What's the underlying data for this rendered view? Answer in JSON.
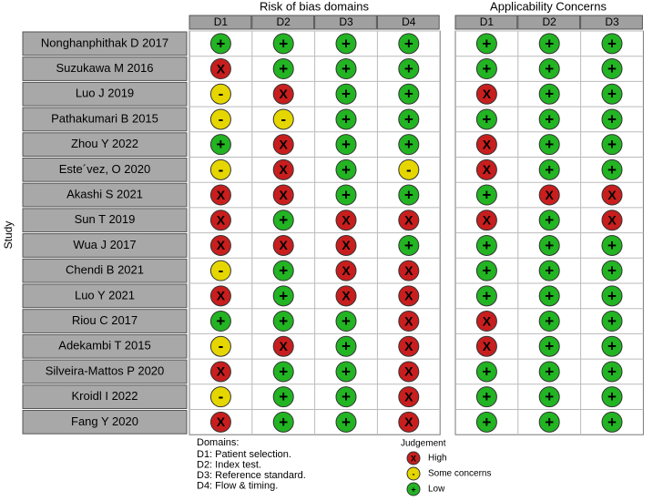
{
  "title_rob": "Risk of bias domains",
  "title_app": "Applicability Concerns",
  "axis_label": "Study",
  "rob_domains": [
    "D1",
    "D2",
    "D3",
    "D4"
  ],
  "app_domains": [
    "D1",
    "D2",
    "D3"
  ],
  "rows": [
    {
      "study": "Nonghanphithak D  2017",
      "rob": [
        "+",
        "+",
        "+",
        "+"
      ],
      "app": [
        "+",
        "+",
        "+"
      ]
    },
    {
      "study": "Suzukawa M 2016",
      "rob": [
        "X",
        "+",
        "+",
        "+"
      ],
      "app": [
        "+",
        "+",
        "+"
      ]
    },
    {
      "study": "Luo J 2019",
      "rob": [
        "-",
        "X",
        "+",
        "+"
      ],
      "app": [
        "X",
        "+",
        "+"
      ]
    },
    {
      "study": "Pathakumari  B 2015",
      "rob": [
        "-",
        "-",
        "+",
        "+"
      ],
      "app": [
        "+",
        "+",
        "+"
      ]
    },
    {
      "study": "Zhou Y 2022",
      "rob": [
        "+",
        "X",
        "+",
        "+"
      ],
      "app": [
        "X",
        "+",
        "+"
      ]
    },
    {
      "study": "Este´vez, O 2020",
      "rob": [
        "-",
        "X",
        "+",
        "-"
      ],
      "app": [
        "X",
        "+",
        "+"
      ]
    },
    {
      "study": "Akashi S 2021",
      "rob": [
        "X",
        "X",
        "+",
        "+"
      ],
      "app": [
        "+",
        "X",
        "X"
      ]
    },
    {
      "study": "Sun  T 2019",
      "rob": [
        "X",
        "+",
        "X",
        "X"
      ],
      "app": [
        "X",
        "+",
        "X"
      ]
    },
    {
      "study": "Wua J 2017",
      "rob": [
        "X",
        "X",
        "X",
        "+"
      ],
      "app": [
        "+",
        "+",
        "+"
      ]
    },
    {
      "study": "Chendi  B 2021",
      "rob": [
        "-",
        "+",
        "X",
        "X"
      ],
      "app": [
        "+",
        "+",
        "+"
      ]
    },
    {
      "study": "Luo Y 2021",
      "rob": [
        "X",
        "+",
        "X",
        "X"
      ],
      "app": [
        "+",
        "+",
        "+"
      ]
    },
    {
      "study": "Riou  C 2017",
      "rob": [
        "+",
        "+",
        "+",
        "X"
      ],
      "app": [
        "X",
        "+",
        "+"
      ]
    },
    {
      "study": "Adekambi  T 2015",
      "rob": [
        "-",
        "X",
        "+",
        "X"
      ],
      "app": [
        "X",
        "+",
        "+"
      ]
    },
    {
      "study": "Silveira-Mattos P 2020",
      "rob": [
        "X",
        "+",
        "+",
        "X"
      ],
      "app": [
        "+",
        "+",
        "+"
      ]
    },
    {
      "study": "Kroidl  I 2022",
      "rob": [
        "-",
        "+",
        "+",
        "X"
      ],
      "app": [
        "+",
        "+",
        "+"
      ]
    },
    {
      "study": "Fang Y 2020",
      "rob": [
        "X",
        "+",
        "+",
        "X"
      ],
      "app": [
        "+",
        "+",
        "+"
      ]
    }
  ],
  "domains_note": {
    "title": "Domains:",
    "items": [
      "D1: Patient selection.",
      "D2: Index test.",
      "D3: Reference standard.",
      "D4: Flow & timing."
    ]
  },
  "legend": {
    "title": "Judgement",
    "items": [
      {
        "symbol": "X",
        "label": "High",
        "color": "#c81e1e"
      },
      {
        "symbol": "-",
        "label": "Some concerns",
        "color": "#e6d600"
      },
      {
        "symbol": "+",
        "label": "Low",
        "color": "#22b422"
      }
    ]
  }
}
